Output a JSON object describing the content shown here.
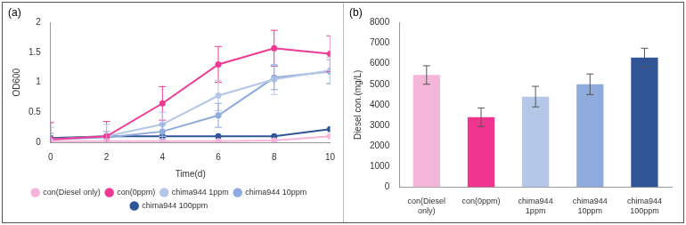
{
  "chart_data": [
    {
      "type": "line",
      "title": "(a)",
      "x_label": "Time(d)",
      "y_label": "OD600",
      "categories": [
        "0",
        "2",
        "4",
        "6",
        "8",
        "10"
      ],
      "ylim": [
        0,
        2
      ],
      "yticks": [
        0,
        0.5,
        1,
        1.5,
        2
      ],
      "grid": false,
      "legend": "bottom",
      "marker": "circle",
      "series": [
        {
          "name": "con(Diesel only)",
          "color": "#f7b3d9",
          "values": [
            0.02,
            0.02,
            0.02,
            0.02,
            0.03,
            0.1
          ]
        },
        {
          "name": "con(0ppm)",
          "color": "#ee3a95",
          "values": [
            0.05,
            0.1,
            0.65,
            1.3,
            1.57,
            1.48
          ],
          "errors": [
            0.28,
            0.25,
            0.28,
            0.3,
            0.3,
            0.3
          ]
        },
        {
          "name": "chima944 1ppm",
          "color": "#b4c7e7",
          "values": [
            0.05,
            0.1,
            0.3,
            0.78,
            1.05,
            1.2
          ],
          "errors": [
            0.2,
            0.2,
            0.2,
            0.25,
            0.25,
            0.22
          ]
        },
        {
          "name": "chima944 10ppm",
          "color": "#8faadc",
          "values": [
            0.05,
            0.08,
            0.18,
            0.45,
            1.08,
            1.18
          ],
          "errors": [
            0.1,
            0.1,
            0.12,
            0.2,
            0.2,
            0.2
          ]
        },
        {
          "name": "chima944 100ppm",
          "color": "#2f5597",
          "values": [
            0.07,
            0.1,
            0.1,
            0.1,
            0.1,
            0.22
          ]
        }
      ]
    },
    {
      "type": "bar",
      "title": "(b)",
      "y_label": "Diesel con.(mg/L)",
      "categories": [
        "con(Diesel only)",
        "con(0ppm)",
        "chima944 1ppm",
        "chima944 10ppm",
        "chima944 100ppm"
      ],
      "values": [
        5450,
        3400,
        4400,
        5000,
        6300
      ],
      "errors": [
        450,
        450,
        500,
        500,
        450
      ],
      "colors": [
        "#f4b6d8",
        "#f0358f",
        "#b4c7e7",
        "#8faadc",
        "#2f5597"
      ],
      "ylim": [
        0,
        8000
      ],
      "yticks": [
        0,
        1000,
        2000,
        3000,
        4000,
        5000,
        6000,
        7000,
        8000
      ],
      "grid": false
    }
  ]
}
